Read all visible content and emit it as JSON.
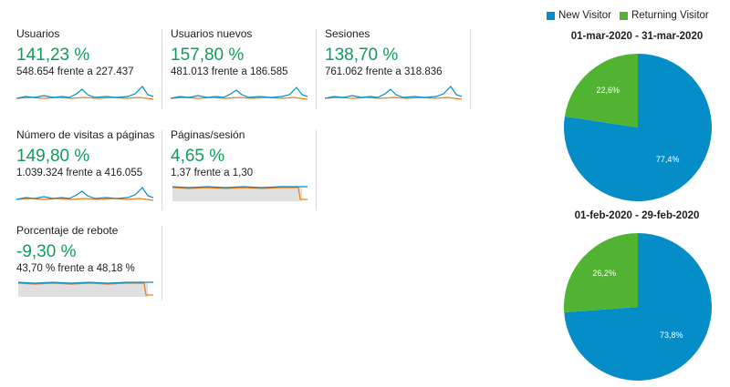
{
  "colors": {
    "positive": "#0f9d58",
    "new_visitor": "#058dc7",
    "returning_visitor": "#50b432",
    "current_line": "#058dc7",
    "previous_line": "#ed7e17"
  },
  "metrics": [
    {
      "label": "Usuarios",
      "change": "141,23 %",
      "comparison": "548.654 frente a 227.437"
    },
    {
      "label": "Usuarios nuevos",
      "change": "157,80 %",
      "comparison": "481.013 frente a 186.585"
    },
    {
      "label": "Sesiones",
      "change": "138,70 %",
      "comparison": "761.062 frente a 318.836"
    },
    {
      "label": "Número de visitas a páginas",
      "change": "149,80 %",
      "comparison": "1.039.324 frente a 416.055"
    },
    {
      "label": "Páginas/sesión",
      "change": "4,65 %",
      "comparison": "1,37 frente a 1,30"
    },
    {
      "label": "Porcentaje de rebote",
      "change": "-9,30 %",
      "comparison": "43,70 % frente a 48,18 %"
    }
  ],
  "legend": {
    "new": "New Visitor",
    "returning": "Returning Visitor"
  },
  "pies": [
    {
      "title": "01-mar-2020 - 31-mar-2020",
      "new_pct": 77.4,
      "returning_pct": 22.6,
      "new_label": "77,4%",
      "returning_label": "22,6%"
    },
    {
      "title": "01-feb-2020 - 29-feb-2020",
      "new_pct": 73.8,
      "returning_pct": 26.2,
      "new_label": "73,8%",
      "returning_label": "26,2%"
    }
  ]
}
